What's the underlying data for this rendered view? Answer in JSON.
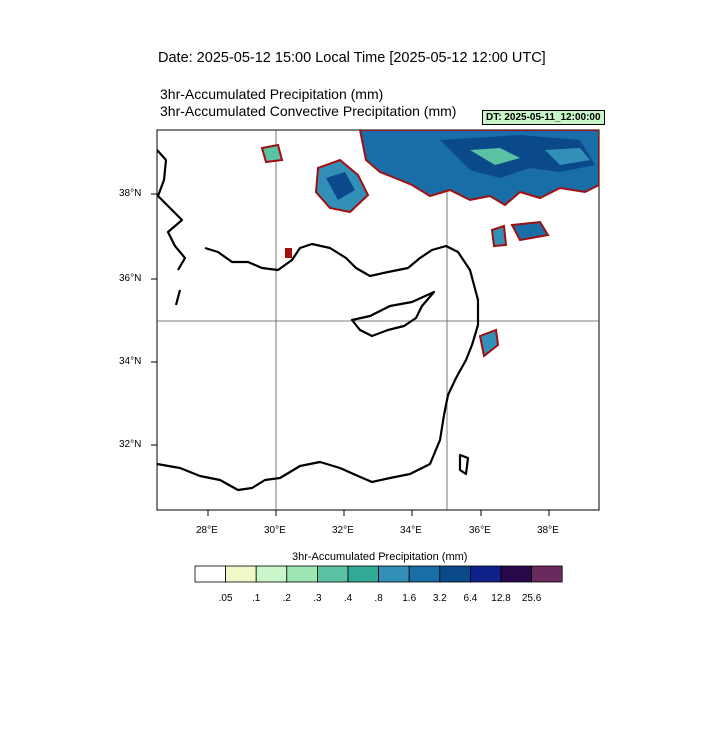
{
  "header": {
    "date_line": "Date: 2025-05-12  15:00 Local Time [2025-05-12  12:00 UTC]",
    "title_1": "3hr-Accumulated Precipitation   (mm)",
    "title_2": "3hr-Accumulated Convective Precipitation   (mm)",
    "dt_label": "DT: 2025-05-11_12:00:00"
  },
  "map": {
    "lat_labels": [
      "38°N",
      "36°N",
      "34°N",
      "32°N"
    ],
    "lon_labels": [
      "28°E",
      "30°E",
      "32°E",
      "34°E",
      "36°E",
      "38°E"
    ],
    "grid_lines": {
      "lon": "30°E, 35°E",
      "lat": "35°N"
    }
  },
  "colorbar": {
    "title": "3hr-Accumulated Precipitation  (mm)",
    "labels": [
      ".05",
      ".1",
      ".2",
      ".3",
      ".4",
      ".8",
      "1.6",
      "3.2",
      "6.4",
      "12.8",
      "25.6"
    ],
    "colors": [
      "#ffffff",
      "#eef8c8",
      "#c9f5c9",
      "#9de6b4",
      "#5cc2a4",
      "#32aa98",
      "#3290b8",
      "#1a6ea8",
      "#0a4a8a",
      "#10208a",
      "#28084a",
      "#6a2a5e"
    ]
  },
  "colors": {
    "contour": "#a01010",
    "coast": "#000000"
  }
}
